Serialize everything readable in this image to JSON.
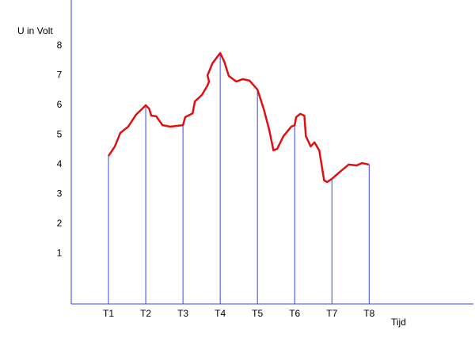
{
  "chart_data": {
    "type": "line",
    "y_label": "U in Volt",
    "x_label": "Tijd",
    "x": [
      1,
      1.17,
      1.32,
      1.53,
      1.74,
      2,
      2.09,
      2.15,
      2.28,
      2.45,
      2.66,
      3,
      3.06,
      3.26,
      3.32,
      3.51,
      3.66,
      3.7,
      3.66,
      3.79,
      4,
      4.11,
      4.23,
      4.43,
      4.6,
      4.79,
      5,
      5.17,
      5.32,
      5.43,
      5.53,
      5.7,
      5.91,
      6,
      6.04,
      6.15,
      6.26,
      6.3,
      6.43,
      6.53,
      6.66,
      6.79,
      6.87,
      7,
      7.19,
      7.45,
      7.66,
      7.81,
      8
    ],
    "series": [
      {
        "color": "#dd1111",
        "values": [
          4.29,
          4.61,
          5.07,
          5.28,
          5.68,
          6.0,
          5.89,
          5.65,
          5.63,
          5.33,
          5.28,
          5.33,
          5.6,
          5.73,
          6.13,
          6.35,
          6.67,
          6.8,
          7.01,
          7.41,
          7.76,
          7.47,
          6.99,
          6.8,
          6.88,
          6.83,
          6.53,
          5.87,
          5.15,
          4.48,
          4.53,
          4.96,
          5.28,
          5.33,
          5.6,
          5.71,
          5.65,
          4.96,
          4.61,
          4.75,
          4.48,
          3.47,
          3.41,
          3.52,
          3.73,
          4.0,
          3.97,
          4.05,
          4.0
        ]
      }
    ],
    "xlim": [
      0,
      10.8
    ],
    "xticks": [
      {
        "value": 1,
        "label": "T1"
      },
      {
        "value": 2,
        "label": "T2"
      },
      {
        "value": 3,
        "label": "T3"
      },
      {
        "value": 4,
        "label": "T4"
      },
      {
        "value": 5,
        "label": "T5"
      },
      {
        "value": 6,
        "label": "T6"
      },
      {
        "value": 7,
        "label": "T7"
      },
      {
        "value": 8,
        "label": "T8"
      }
    ],
    "ylim": [
      -0.7,
      9.55
    ],
    "yticks": [
      1,
      2,
      3,
      4,
      5,
      6,
      7,
      8
    ],
    "drop_line_color": "#3344ee",
    "axis_color": "#3344ee"
  }
}
